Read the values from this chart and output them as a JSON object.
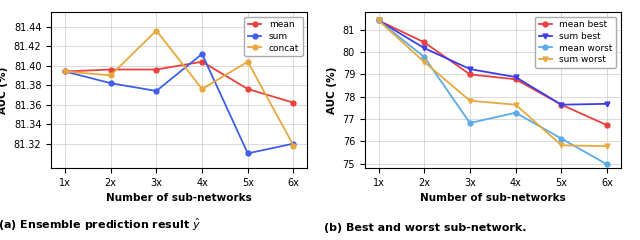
{
  "x_labels": [
    "1x",
    "2x",
    "3x",
    "4x",
    "5x",
    "6x"
  ],
  "x_vals": [
    1,
    2,
    3,
    4,
    5,
    6
  ],
  "left_ylabel": "AUC (%)",
  "left_xlabel": "Number of sub-networks",
  "left_ylim": [
    81.295,
    81.455
  ],
  "left_yticks": [
    81.32,
    81.34,
    81.36,
    81.38,
    81.4,
    81.42,
    81.44
  ],
  "left_series": {
    "mean": [
      81.394,
      81.396,
      81.396,
      81.404,
      81.376,
      81.362
    ],
    "sum": [
      81.394,
      81.382,
      81.374,
      81.412,
      81.31,
      81.32
    ],
    "concat": [
      81.394,
      81.39,
      81.436,
      81.376,
      81.404,
      81.318
    ]
  },
  "left_colors": {
    "mean": "#e8413e",
    "sum": "#3e5fe8",
    "concat": "#e8a83e"
  },
  "left_markers": {
    "mean": "o",
    "sum": "o",
    "concat": "o"
  },
  "right_ylabel": "AUC (%)",
  "right_xlabel": "Number of sub-networks",
  "right_ylim": [
    74.8,
    81.8
  ],
  "right_yticks": [
    75,
    76,
    77,
    78,
    79,
    80,
    81
  ],
  "right_series": {
    "mean best": [
      81.42,
      80.44,
      79.0,
      78.78,
      77.64,
      76.72
    ],
    "sum best": [
      81.42,
      80.18,
      79.24,
      78.88,
      77.64,
      77.68
    ],
    "mean worst": [
      81.42,
      79.78,
      76.82,
      77.28,
      76.12,
      74.96
    ],
    "sum worst": [
      81.42,
      79.56,
      77.82,
      77.64,
      75.82,
      75.78
    ]
  },
  "right_colors": {
    "mean best": "#e8413e",
    "sum best": "#3e3ee8",
    "mean worst": "#5aabe8",
    "sum worst": "#e8a83e"
  },
  "right_markers": {
    "mean best": "o",
    "sum best": "v",
    "mean worst": "o",
    "sum worst": "v"
  },
  "caption_left": "(a) Ensemble prediction result $\\hat{y}$",
  "caption_right": "(b) Best and worst sub-network."
}
